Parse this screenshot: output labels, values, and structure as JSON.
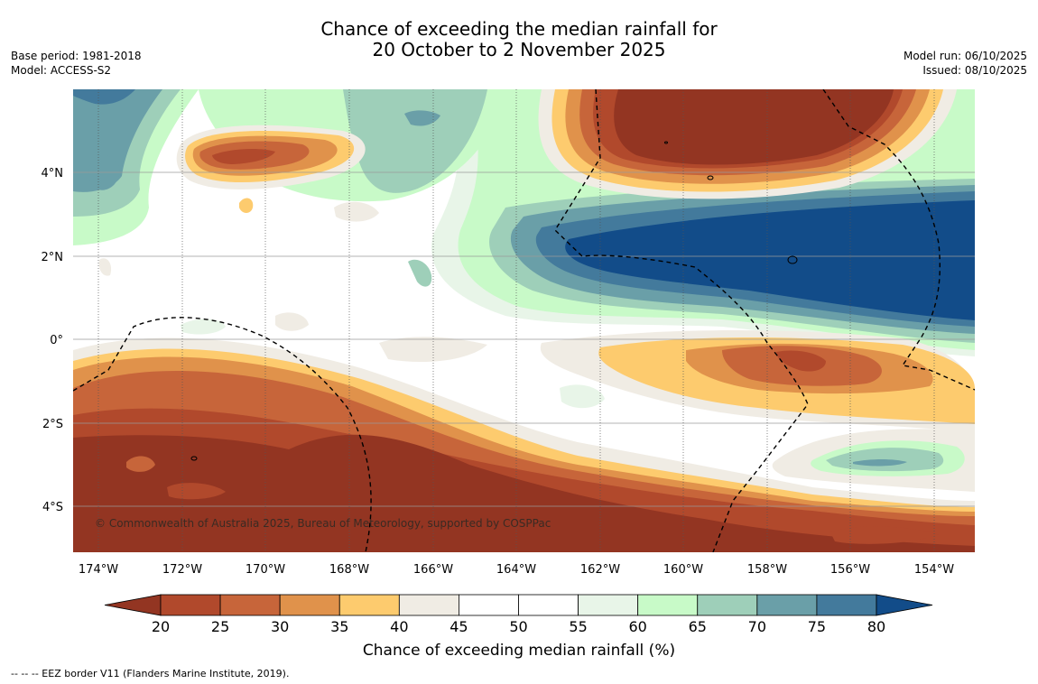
{
  "title": {
    "line1": "Chance of exceeding the median rainfall for",
    "line2": "20 October to 2 November 2025"
  },
  "meta_left": {
    "base_period": "Base period: 1981-2018",
    "model": "Model: ACCESS-S2"
  },
  "meta_right": {
    "model_run": "Model run: 06/10/2025",
    "issued": "Issued: 08/10/2025"
  },
  "copyright": "© Commonwealth of Australia 2025, Bureau of Meteorology, supported by COSPPac",
  "lat_ticks": [
    "4°N",
    "2°N",
    "0°",
    "2°S",
    "4°S"
  ],
  "lon_ticks": [
    "174°W",
    "172°W",
    "170°W",
    "168°W",
    "166°W",
    "164°W",
    "162°W",
    "160°W",
    "158°W",
    "156°W",
    "154°W"
  ],
  "colorbar": {
    "title": "Chance of exceeding median rainfall (%)",
    "ticks": [
      "20",
      "25",
      "30",
      "35",
      "40",
      "45",
      "50",
      "55",
      "60",
      "65",
      "70",
      "75",
      "80"
    ],
    "colors": [
      "#933522",
      "#b1492c",
      "#c7653a",
      "#e0924b",
      "#fdcb6e",
      "#f0ece4",
      "#ffffff",
      "#ffffff",
      "#e8f5e8",
      "#c8fac8",
      "#9ecfb9",
      "#6a9fa8",
      "#437a9c",
      "#124c89"
    ]
  },
  "footnote": "--  --  -- EEZ border V11 (Flanders Marine Institute, 2019)."
}
